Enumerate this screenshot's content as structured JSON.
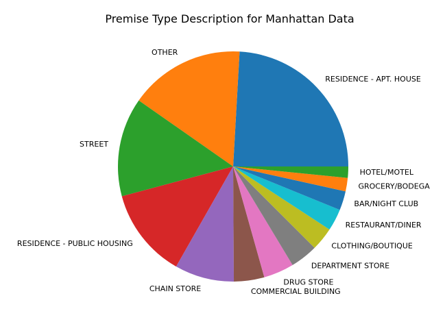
{
  "chart_data": {
    "type": "pie",
    "title": "Premise Type Description for Manhattan Data",
    "start_angle_deg": 0,
    "direction": "counterclockwise",
    "legend": "none",
    "categories": [
      "RESIDENCE - APT. HOUSE",
      "OTHER",
      "STREET",
      "RESIDENCE - PUBLIC HOUSING",
      "CHAIN STORE",
      "COMMERCIAL BUILDING",
      "DRUG STORE",
      "DEPARTMENT STORE",
      "CLOTHING/BOUTIQUE",
      "RESTAURANT/DINER",
      "BAR/NIGHT CLUB",
      "GROCERY/BODEGA",
      "HOTEL/MOTEL"
    ],
    "values": [
      24.3,
      16.3,
      14.0,
      12.7,
      8.4,
      4.3,
      4.3,
      3.9,
      3.3,
      3.1,
      2.7,
      1.9,
      1.6
    ],
    "colors": [
      "#1f77b4",
      "#ff7f0e",
      "#2ca02c",
      "#d62728",
      "#9467bd",
      "#8c564b",
      "#e377c2",
      "#7f7f7f",
      "#bcbd22",
      "#17becf",
      "#1f77b4",
      "#ff7f0e",
      "#2ca02c"
    ]
  }
}
